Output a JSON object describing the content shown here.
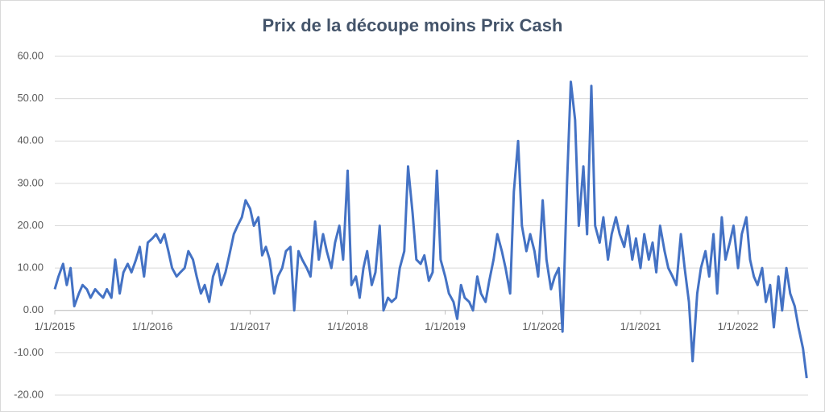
{
  "chart_data": {
    "type": "line",
    "title": "Prix de la découpe moins Prix Cash",
    "x": [
      "2015-01-01",
      "2015-01-15",
      "2015-02-01",
      "2015-02-15",
      "2015-03-01",
      "2015-03-15",
      "2015-04-01",
      "2015-04-15",
      "2015-05-01",
      "2015-05-15",
      "2015-06-01",
      "2015-06-15",
      "2015-07-01",
      "2015-07-15",
      "2015-08-01",
      "2015-08-15",
      "2015-09-01",
      "2015-09-15",
      "2015-10-01",
      "2015-10-15",
      "2015-11-01",
      "2015-11-15",
      "2015-12-01",
      "2015-12-15",
      "2016-01-01",
      "2016-01-15",
      "2016-02-01",
      "2016-02-15",
      "2016-03-01",
      "2016-03-15",
      "2016-04-01",
      "2016-04-15",
      "2016-05-01",
      "2016-05-15",
      "2016-06-01",
      "2016-06-15",
      "2016-07-01",
      "2016-07-15",
      "2016-08-01",
      "2016-08-15",
      "2016-09-01",
      "2016-09-15",
      "2016-10-01",
      "2016-10-15",
      "2016-11-01",
      "2016-11-15",
      "2016-12-01",
      "2016-12-15",
      "2017-01-01",
      "2017-01-15",
      "2017-02-01",
      "2017-02-15",
      "2017-03-01",
      "2017-03-15",
      "2017-04-01",
      "2017-04-15",
      "2017-05-01",
      "2017-05-15",
      "2017-06-01",
      "2017-06-15",
      "2017-07-01",
      "2017-07-15",
      "2017-08-01",
      "2017-08-15",
      "2017-09-01",
      "2017-09-15",
      "2017-10-01",
      "2017-10-15",
      "2017-11-01",
      "2017-11-15",
      "2017-12-01",
      "2017-12-15",
      "2018-01-01",
      "2018-01-15",
      "2018-02-01",
      "2018-02-15",
      "2018-03-01",
      "2018-03-15",
      "2018-04-01",
      "2018-04-15",
      "2018-05-01",
      "2018-05-15",
      "2018-06-01",
      "2018-06-15",
      "2018-07-01",
      "2018-07-15",
      "2018-08-01",
      "2018-08-15",
      "2018-09-01",
      "2018-09-15",
      "2018-10-01",
      "2018-10-15",
      "2018-11-01",
      "2018-11-15",
      "2018-12-01",
      "2018-12-15",
      "2019-01-01",
      "2019-01-15",
      "2019-02-01",
      "2019-02-15",
      "2019-03-01",
      "2019-03-15",
      "2019-04-01",
      "2019-04-15",
      "2019-05-01",
      "2019-05-15",
      "2019-06-01",
      "2019-06-15",
      "2019-07-01",
      "2019-07-15",
      "2019-08-01",
      "2019-08-15",
      "2019-09-01",
      "2019-09-15",
      "2019-10-01",
      "2019-10-15",
      "2019-11-01",
      "2019-11-15",
      "2019-12-01",
      "2019-12-15",
      "2020-01-01",
      "2020-01-15",
      "2020-02-01",
      "2020-02-15",
      "2020-03-01",
      "2020-03-15",
      "2020-04-01",
      "2020-04-15",
      "2020-05-01",
      "2020-05-15",
      "2020-06-01",
      "2020-06-15",
      "2020-07-01",
      "2020-07-15",
      "2020-08-01",
      "2020-08-15",
      "2020-09-01",
      "2020-09-15",
      "2020-10-01",
      "2020-10-15",
      "2020-11-01",
      "2020-11-15",
      "2020-12-01",
      "2020-12-15",
      "2021-01-01",
      "2021-01-15",
      "2021-02-01",
      "2021-02-15",
      "2021-03-01",
      "2021-03-15",
      "2021-04-01",
      "2021-04-15",
      "2021-05-01",
      "2021-05-15",
      "2021-06-01",
      "2021-06-15",
      "2021-07-01",
      "2021-07-15",
      "2021-08-01",
      "2021-08-15",
      "2021-09-01",
      "2021-09-15",
      "2021-10-01",
      "2021-10-15",
      "2021-11-01",
      "2021-11-15",
      "2021-12-01",
      "2021-12-15",
      "2022-01-01",
      "2022-01-15",
      "2022-02-01",
      "2022-02-15",
      "2022-03-01",
      "2022-03-15",
      "2022-04-01",
      "2022-04-15",
      "2022-05-01",
      "2022-05-15",
      "2022-06-01",
      "2022-06-15",
      "2022-07-01",
      "2022-07-15",
      "2022-08-01",
      "2022-08-15",
      "2022-09-01",
      "2022-09-15"
    ],
    "series": [
      {
        "color": "#4472c4",
        "values": [
          5,
          8,
          11,
          6,
          10,
          1,
          4,
          6,
          5,
          3,
          5,
          4,
          3,
          5,
          3,
          12,
          4,
          9,
          11,
          9,
          12,
          15,
          8,
          16,
          17,
          18,
          16,
          18,
          14,
          10,
          8,
          9,
          10,
          14,
          12,
          8,
          4,
          6,
          2,
          8,
          11,
          6,
          9,
          13,
          18,
          20,
          22,
          26,
          24,
          20,
          22,
          13,
          15,
          12,
          4,
          8,
          10,
          14,
          15,
          0,
          14,
          12,
          10,
          8,
          21,
          12,
          18,
          14,
          10,
          16,
          20,
          12,
          33,
          6,
          8,
          3,
          10,
          14,
          6,
          9,
          20,
          0,
          3,
          2,
          3,
          10,
          14,
          34,
          23,
          12,
          11,
          13,
          7,
          9,
          33,
          12,
          8,
          4,
          2,
          -2,
          6,
          3,
          2,
          0,
          8,
          4,
          2,
          7,
          12,
          18,
          14,
          10,
          4,
          28,
          40,
          20,
          14,
          18,
          14,
          8,
          26,
          12,
          5,
          8,
          10,
          -5,
          30,
          54,
          45,
          20,
          34,
          18,
          53,
          20,
          16,
          22,
          12,
          18,
          22,
          18,
          15,
          20,
          12,
          17,
          10,
          18,
          12,
          16,
          9,
          20,
          14,
          10,
          8,
          6,
          18,
          10,
          2,
          -12,
          4,
          10,
          14,
          8,
          18,
          4,
          22,
          12,
          16,
          20,
          10,
          18,
          22,
          12,
          8,
          6,
          10,
          2,
          6,
          -4,
          8,
          0,
          10,
          4,
          1,
          -4,
          -9,
          -16
        ]
      }
    ],
    "xlim": [
      "2015-01-01",
      "2022-09-20"
    ],
    "xticks": [
      {
        "value": "2015-01-01",
        "label": "1/1/2015"
      },
      {
        "value": "2016-01-01",
        "label": "1/1/2016"
      },
      {
        "value": "2017-01-01",
        "label": "1/1/2017"
      },
      {
        "value": "2018-01-01",
        "label": "1/1/2018"
      },
      {
        "value": "2019-01-01",
        "label": "1/1/2019"
      },
      {
        "value": "2020-01-01",
        "label": "1/1/2020"
      },
      {
        "value": "2021-01-01",
        "label": "1/1/2021"
      },
      {
        "value": "2022-01-01",
        "label": "1/1/2022"
      }
    ],
    "ylim": [
      -20,
      60
    ],
    "yticks": [
      {
        "value": -20,
        "label": "-20.00"
      },
      {
        "value": -10,
        "label": "-10.00"
      },
      {
        "value": 0,
        "label": "0.00"
      },
      {
        "value": 10,
        "label": "10.00"
      },
      {
        "value": 20,
        "label": "20.00"
      },
      {
        "value": 30,
        "label": "30.00"
      },
      {
        "value": 40,
        "label": "40.00"
      },
      {
        "value": 50,
        "label": "50.00"
      },
      {
        "value": 60,
        "label": "60.00"
      }
    ],
    "grid": true
  }
}
